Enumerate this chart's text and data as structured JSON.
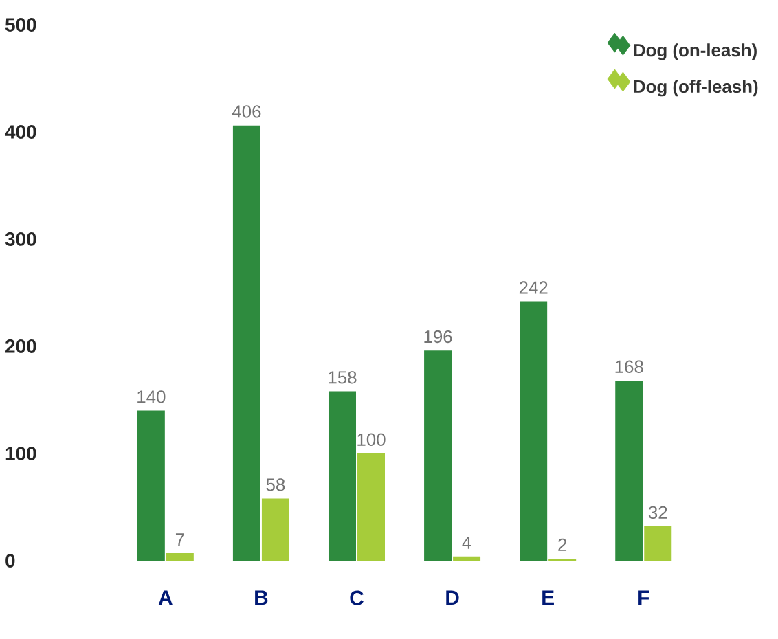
{
  "chart_data": {
    "type": "bar",
    "categories": [
      "A",
      "B",
      "C",
      "D",
      "E",
      "F"
    ],
    "series": [
      {
        "name": "Dog (on-leash)",
        "color": "#2e8b3e",
        "values": [
          140,
          406,
          158,
          196,
          242,
          168
        ]
      },
      {
        "name": "Dog (off-leash)",
        "color": "#a6cc3a",
        "values": [
          7,
          58,
          100,
          4,
          2,
          32
        ]
      }
    ],
    "ylim": [
      0,
      500
    ],
    "yticks": [
      0,
      100,
      200,
      300,
      400,
      500
    ],
    "data_labels": true,
    "legend": "top right",
    "marker": "diamond",
    "grid": false
  }
}
